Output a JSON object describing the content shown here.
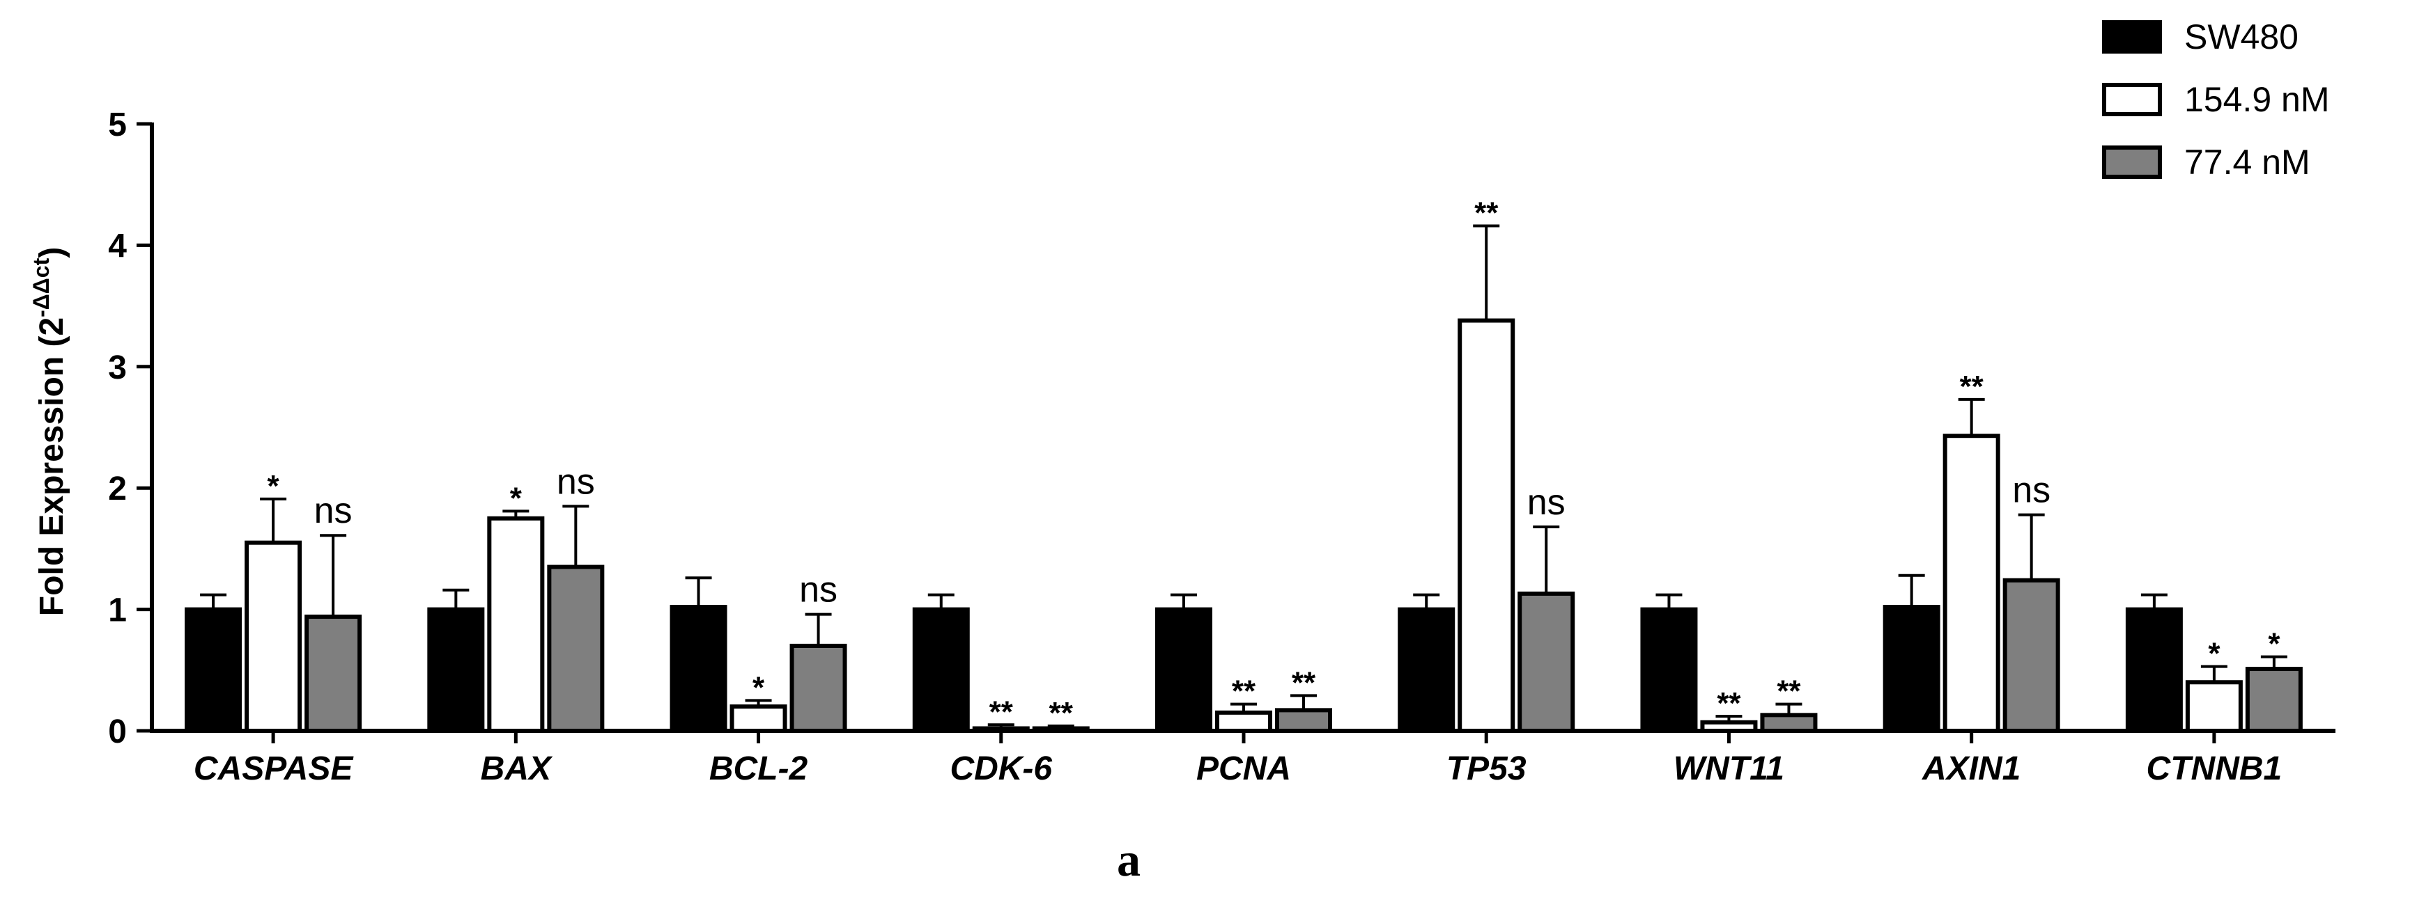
{
  "chart_data": {
    "type": "bar",
    "ylabel": "Fold Expression (2",
    "ylabel_sup": "-ΔΔct",
    "ylabel_close": ")",
    "ylim": [
      0,
      5
    ],
    "yticks": [
      "0",
      "1",
      "2",
      "3",
      "4",
      "5"
    ],
    "categories": [
      "CASPASE",
      "BAX",
      "BCL-2",
      "CDK-6",
      "PCNA",
      "TP53",
      "WNT11",
      "AXIN1",
      "CTNNB1"
    ],
    "legend_position": "top-right",
    "series": [
      {
        "name": "SW480",
        "color": "#000000",
        "values": [
          1.0,
          1.0,
          1.02,
          1.0,
          1.0,
          1.0,
          1.0,
          1.02,
          1.0
        ],
        "errors": [
          0.12,
          0.16,
          0.24,
          0.12,
          0.12,
          0.12,
          0.12,
          0.26,
          0.12
        ],
        "annotations": [
          "",
          "",
          "",
          "",
          "",
          "",
          "",
          "",
          ""
        ]
      },
      {
        "name": "154.9 nM",
        "color": "#ffffff",
        "values": [
          1.55,
          1.75,
          0.2,
          0.02,
          0.15,
          3.38,
          0.07,
          2.43,
          0.4
        ],
        "errors": [
          0.36,
          0.06,
          0.05,
          0.03,
          0.07,
          0.78,
          0.05,
          0.3,
          0.13
        ],
        "annotations": [
          "*",
          "*",
          "*",
          "**",
          "**",
          "**",
          "**",
          "**",
          "*"
        ]
      },
      {
        "name": "77.4 nM",
        "color": "#7f7f7f",
        "values": [
          0.94,
          1.35,
          0.7,
          0.02,
          0.17,
          1.13,
          0.13,
          1.24,
          0.51
        ],
        "errors": [
          0.67,
          0.5,
          0.26,
          0.02,
          0.12,
          0.55,
          0.09,
          0.54,
          0.1
        ],
        "annotations": [
          "ns",
          "ns",
          "ns",
          "**",
          "**",
          "ns",
          "**",
          "ns",
          "*"
        ]
      }
    ]
  },
  "panel_label": "a"
}
